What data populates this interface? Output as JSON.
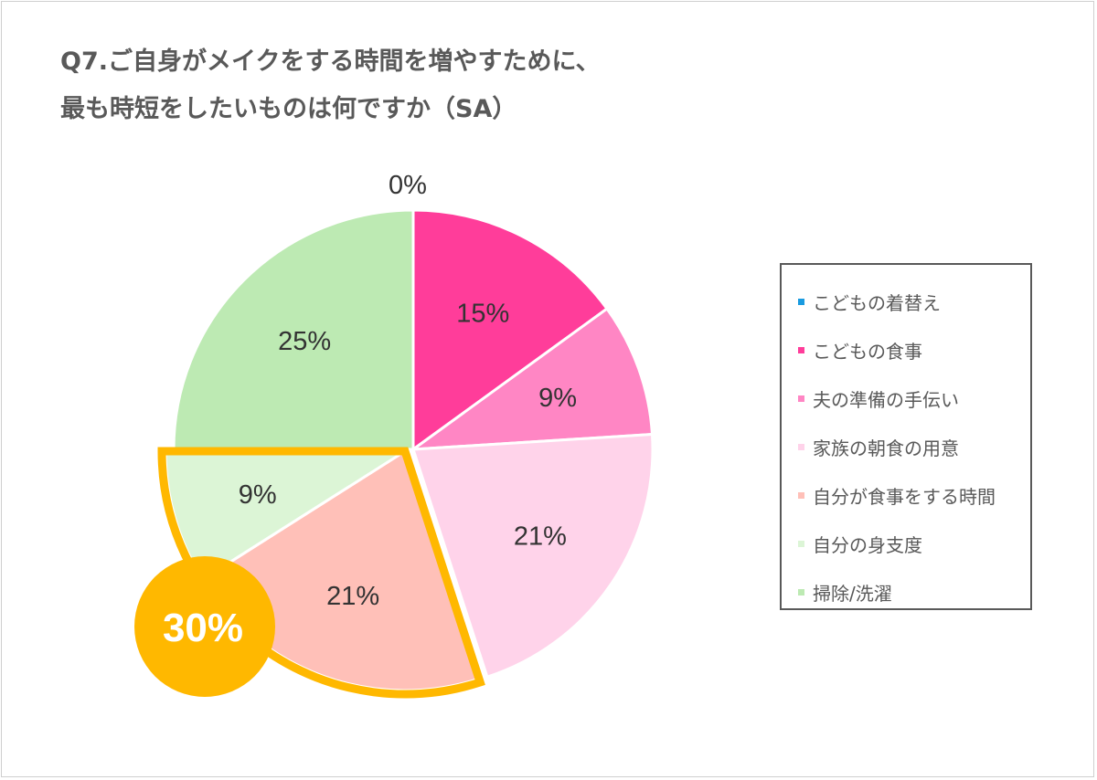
{
  "title": {
    "line1": "Q7.ご自身がメイクをする時間を増やすために、",
    "line2": "最も時短をしたいものは何ですか（SA）"
  },
  "chart_data": {
    "type": "pie",
    "title": "Q7.ご自身がメイクをする時間を増やすために、最も時短をしたいものは何ですか（SA）",
    "start_angle_deg": 0,
    "direction": "clockwise",
    "legend_position": "right",
    "slices": [
      {
        "label": "こどもの着替え",
        "value": 0,
        "display": "0%",
        "color": "#1a9be0"
      },
      {
        "label": "こどもの食事",
        "value": 15,
        "display": "15%",
        "color": "#ff3d9a"
      },
      {
        "label": "夫の準備の手伝い",
        "value": 9,
        "display": "9%",
        "color": "#ff86c4"
      },
      {
        "label": "家族の朝食の用意",
        "value": 21,
        "display": "21%",
        "color": "#ffd3ea"
      },
      {
        "label": "自分が食事をする時間",
        "value": 21,
        "display": "21%",
        "color": "#ffc0b8"
      },
      {
        "label": "自分の身支度",
        "value": 9,
        "display": "9%",
        "color": "#dcf5d6"
      },
      {
        "label": "掃除/洗濯",
        "value": 25,
        "display": "25%",
        "color": "#bdeab3"
      }
    ],
    "highlight": {
      "slices": [
        "自分が食事をする時間",
        "自分の身支度"
      ],
      "total_label": "30%",
      "color": "#ffb800"
    }
  }
}
